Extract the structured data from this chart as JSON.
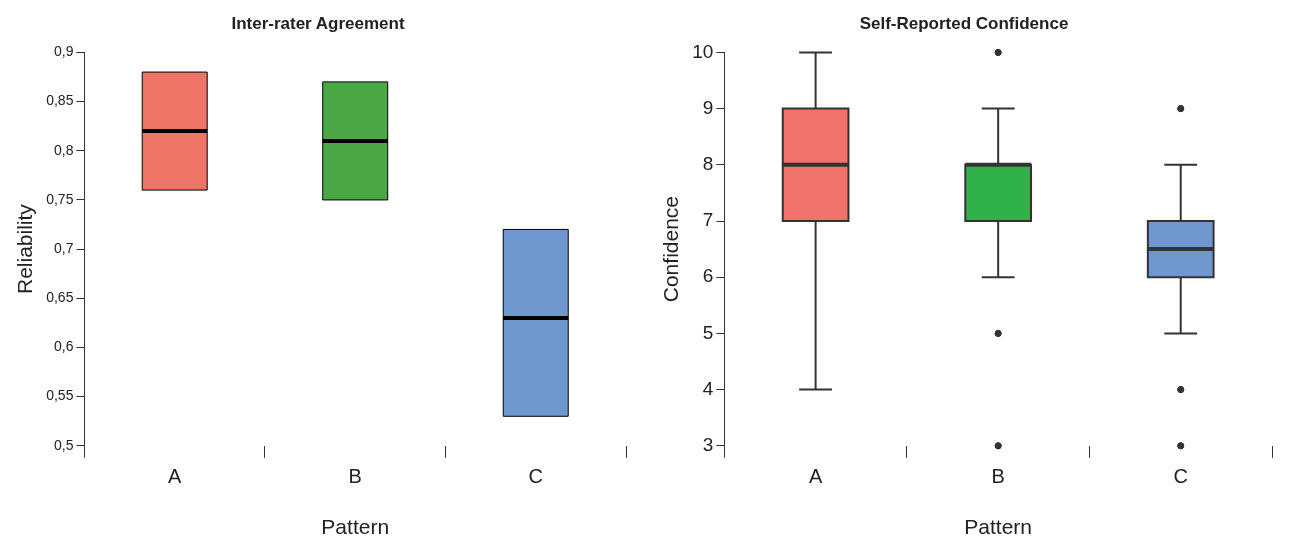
{
  "chart_data": [
    {
      "type": "box",
      "title": "Inter-rater Agreement",
      "xlabel": "Pattern",
      "ylabel": "Reliability",
      "categories": [
        "A",
        "B",
        "C"
      ],
      "colors": [
        "#ef7468",
        "#4aa844",
        "#6f97cf"
      ],
      "boxes": [
        {
          "low": 0.76,
          "q1": 0.76,
          "median": 0.82,
          "q3": 0.88,
          "high": 0.88
        },
        {
          "low": 0.75,
          "q1": 0.75,
          "median": 0.81,
          "q3": 0.87,
          "high": 0.87
        },
        {
          "low": 0.53,
          "q1": 0.53,
          "median": 0.63,
          "q3": 0.72,
          "high": 0.72
        }
      ],
      "ylim": [
        0.5,
        0.9
      ],
      "yticks": [
        {
          "value": 0.5,
          "label": "0,5"
        },
        {
          "value": 0.55,
          "label": "0,55"
        },
        {
          "value": 0.6,
          "label": "0,6"
        },
        {
          "value": 0.65,
          "label": "0,65"
        },
        {
          "value": 0.7,
          "label": "0,7"
        },
        {
          "value": 0.75,
          "label": "0,75"
        },
        {
          "value": 0.8,
          "label": "0,8"
        },
        {
          "value": 0.85,
          "label": "0,85"
        },
        {
          "value": 0.9,
          "label": "0,9"
        }
      ],
      "grid": false
    },
    {
      "type": "box",
      "title": "Self-Reported Confidence",
      "xlabel": "Pattern",
      "ylabel": "Confidence",
      "categories": [
        "A",
        "B",
        "C"
      ],
      "colors": [
        "#f0736a",
        "#2fb24a",
        "#6e97d0"
      ],
      "boxes": [
        {
          "low": 4,
          "q1": 7,
          "median": 8,
          "q3": 9,
          "high": 10
        },
        {
          "low": 6,
          "q1": 7,
          "median": 8,
          "q3": 8,
          "high": 9,
          "outliers": [
            10,
            5,
            3
          ]
        },
        {
          "low": 5,
          "q1": 6,
          "median": 6.5,
          "q3": 7,
          "high": 8,
          "outliers": [
            9,
            4,
            3
          ]
        }
      ],
      "ylim": [
        3,
        10
      ],
      "yticks": [
        3,
        4,
        5,
        6,
        7,
        8,
        9,
        10
      ],
      "grid": false
    }
  ]
}
